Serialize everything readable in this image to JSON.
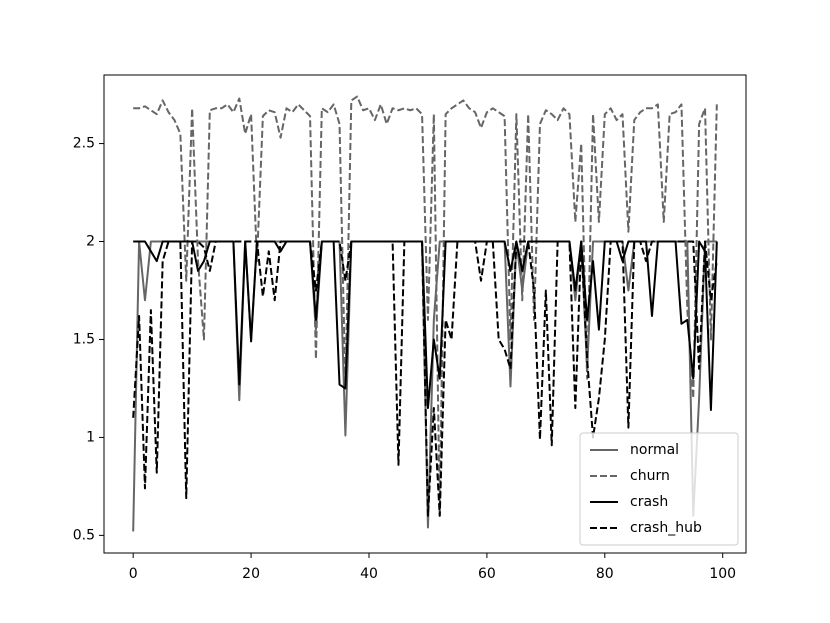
{
  "chart_data": {
    "type": "line",
    "x": [
      0,
      1,
      2,
      3,
      4,
      5,
      6,
      7,
      8,
      9,
      10,
      11,
      12,
      13,
      14,
      15,
      16,
      17,
      18,
      19,
      20,
      21,
      22,
      23,
      24,
      25,
      26,
      27,
      28,
      29,
      30,
      31,
      32,
      33,
      34,
      35,
      36,
      37,
      38,
      39,
      40,
      41,
      42,
      43,
      44,
      45,
      46,
      47,
      48,
      49,
      50,
      51,
      52,
      53,
      54,
      55,
      56,
      57,
      58,
      59,
      60,
      61,
      62,
      63,
      64,
      65,
      66,
      67,
      68,
      69,
      70,
      71,
      72,
      73,
      74,
      75,
      76,
      77,
      78,
      79,
      80,
      81,
      82,
      83,
      84,
      85,
      86,
      87,
      88,
      89,
      90,
      91,
      92,
      93,
      94,
      95,
      96,
      97,
      98,
      99
    ],
    "series": [
      {
        "name": "normal",
        "color": "#666666",
        "dash": false,
        "values": [
          0.52,
          2.0,
          1.7,
          2.0,
          2.0,
          2.0,
          2.0,
          2.0,
          2.0,
          2.0,
          2.0,
          2.0,
          2.0,
          2.0,
          2.0,
          2.0,
          2.0,
          2.0,
          1.19,
          2.0,
          1.5,
          2.0,
          2.0,
          2.0,
          2.0,
          2.0,
          2.0,
          2.0,
          2.0,
          2.0,
          2.0,
          1.55,
          2.0,
          2.0,
          2.0,
          2.0,
          1.01,
          2.0,
          2.0,
          2.0,
          2.0,
          2.0,
          2.0,
          2.0,
          2.0,
          2.0,
          2.0,
          2.0,
          2.0,
          2.0,
          0.54,
          1.6,
          2.0,
          2.0,
          2.0,
          2.0,
          2.0,
          2.0,
          2.0,
          2.0,
          2.0,
          2.0,
          2.0,
          2.0,
          1.26,
          2.0,
          1.75,
          2.0,
          2.0,
          2.0,
          2.0,
          2.0,
          2.0,
          2.0,
          2.0,
          1.7,
          2.0,
          1.35,
          2.0,
          2.0,
          2.0,
          2.0,
          2.0,
          2.0,
          1.75,
          2.0,
          2.0,
          2.0,
          2.0,
          2.0,
          2.0,
          2.0,
          2.0,
          2.0,
          2.0,
          0.6,
          1.2,
          2.0,
          2.0,
          2.0
        ]
      },
      {
        "name": "churn",
        "color": "#666666",
        "dash": true,
        "values": [
          2.68,
          2.68,
          2.69,
          2.67,
          2.65,
          2.72,
          2.66,
          2.62,
          2.55,
          1.8,
          2.68,
          1.9,
          1.5,
          2.67,
          2.68,
          2.68,
          2.7,
          2.66,
          2.73,
          2.55,
          2.65,
          1.9,
          2.64,
          2.67,
          2.66,
          2.53,
          2.68,
          2.66,
          2.7,
          2.67,
          2.64,
          1.4,
          2.68,
          2.66,
          2.7,
          2.6,
          1.25,
          2.72,
          2.74,
          2.67,
          2.68,
          2.62,
          2.7,
          2.6,
          2.68,
          2.67,
          2.68,
          2.67,
          2.68,
          2.65,
          1.6,
          2.65,
          0.6,
          2.65,
          2.68,
          2.7,
          2.72,
          2.68,
          2.66,
          2.58,
          2.66,
          2.68,
          2.66,
          2.64,
          1.5,
          2.65,
          1.7,
          2.65,
          1.6,
          2.6,
          2.67,
          2.65,
          2.62,
          2.68,
          2.65,
          2.1,
          2.5,
          1.3,
          2.65,
          2.1,
          2.65,
          2.68,
          2.62,
          2.65,
          2.05,
          2.62,
          2.66,
          2.68,
          2.68,
          2.7,
          2.1,
          2.65,
          2.66,
          2.7,
          1.65,
          1.2,
          2.6,
          2.68,
          1.5,
          2.7
        ]
      },
      {
        "name": "crash",
        "color": "#000000",
        "dash": false,
        "values": [
          2.0,
          2.0,
          2.0,
          1.95,
          1.9,
          2.0,
          2.0,
          2.0,
          2.0,
          2.0,
          2.0,
          1.85,
          1.9,
          2.0,
          2.0,
          2.0,
          2.0,
          2.0,
          1.27,
          2.0,
          1.49,
          2.0,
          2.0,
          2.0,
          2.0,
          1.95,
          2.0,
          2.0,
          2.0,
          2.0,
          2.0,
          1.6,
          2.0,
          2.0,
          2.0,
          1.27,
          1.25,
          2.0,
          2.0,
          2.0,
          2.0,
          2.0,
          2.0,
          2.0,
          2.0,
          2.0,
          2.0,
          2.0,
          2.0,
          2.0,
          1.15,
          1.5,
          1.3,
          2.0,
          2.0,
          2.0,
          2.0,
          2.0,
          2.0,
          2.0,
          2.0,
          2.0,
          2.0,
          2.0,
          1.85,
          2.0,
          1.85,
          2.0,
          2.0,
          2.0,
          2.0,
          2.0,
          2.0,
          2.0,
          2.0,
          1.75,
          2.0,
          1.6,
          1.9,
          1.55,
          2.0,
          2.0,
          2.0,
          1.9,
          2.0,
          2.0,
          2.0,
          2.0,
          1.62,
          2.0,
          2.0,
          2.0,
          2.0,
          1.58,
          1.6,
          1.3,
          2.0,
          1.95,
          1.14,
          2.0
        ]
      },
      {
        "name": "crash_hub",
        "color": "#000000",
        "dash": true,
        "values": [
          1.1,
          1.62,
          0.74,
          1.65,
          0.82,
          1.9,
          2.0,
          2.0,
          2.0,
          0.69,
          2.0,
          2.0,
          1.97,
          1.85,
          2.0,
          2.0,
          2.0,
          2.0,
          2.0,
          2.0,
          2.0,
          2.0,
          1.72,
          1.95,
          1.7,
          2.0,
          2.0,
          2.0,
          2.0,
          2.0,
          2.0,
          1.75,
          2.0,
          2.0,
          2.0,
          2.0,
          1.8,
          2.0,
          2.0,
          2.0,
          2.0,
          2.0,
          2.0,
          2.0,
          2.0,
          0.86,
          2.0,
          2.0,
          2.0,
          2.0,
          0.6,
          1.15,
          0.6,
          1.6,
          1.5,
          2.0,
          2.0,
          2.0,
          2.0,
          1.8,
          2.0,
          2.0,
          1.5,
          1.45,
          1.35,
          2.0,
          2.0,
          2.0,
          1.75,
          0.99,
          1.75,
          0.96,
          2.0,
          2.0,
          2.0,
          1.15,
          2.0,
          1.4,
          1.0,
          1.2,
          1.5,
          2.0,
          2.0,
          2.0,
          1.05,
          2.0,
          2.0,
          1.9,
          2.0,
          2.0,
          2.0,
          2.0,
          2.0,
          2.0,
          2.0,
          2.0,
          1.35,
          2.0,
          1.7,
          1.9
        ]
      }
    ],
    "xlim": [
      -4.95,
      103.95
    ],
    "xticks": [
      0,
      20,
      40,
      60,
      80,
      100
    ],
    "ylim": [
      0.41,
      2.85
    ],
    "yticks": [
      0.5,
      1.0,
      1.5,
      2.0,
      2.5
    ],
    "grid": false,
    "legend": "lower right"
  }
}
